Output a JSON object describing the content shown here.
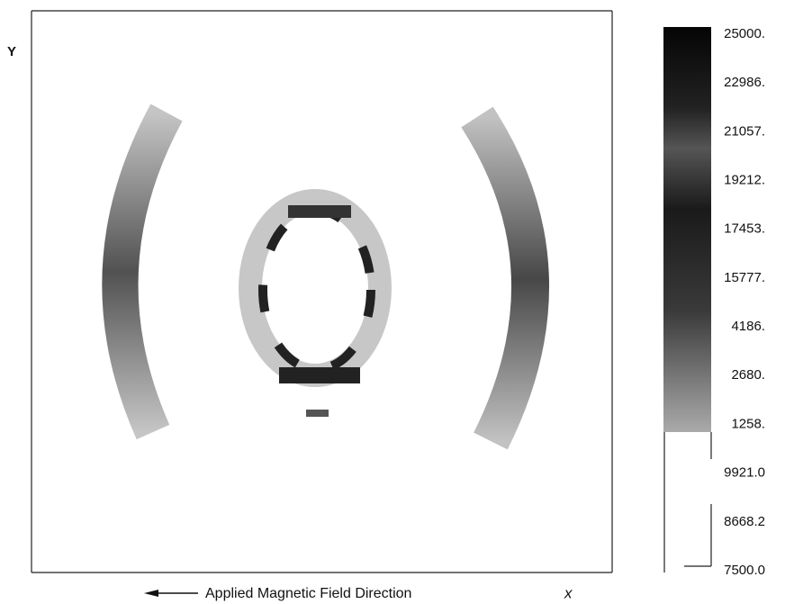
{
  "figure": {
    "y_axis_label": "Y",
    "x_axis_label": "x",
    "caption": "Applied Magnetic Field Direction",
    "colorbar_labels": [
      "25000.",
      "22986.",
      "21057.",
      "19212.",
      "17453.",
      "15777.",
      "4186.",
      "2680.",
      "1258.",
      "9921.0",
      "8668.2",
      "7500.0"
    ]
  }
}
